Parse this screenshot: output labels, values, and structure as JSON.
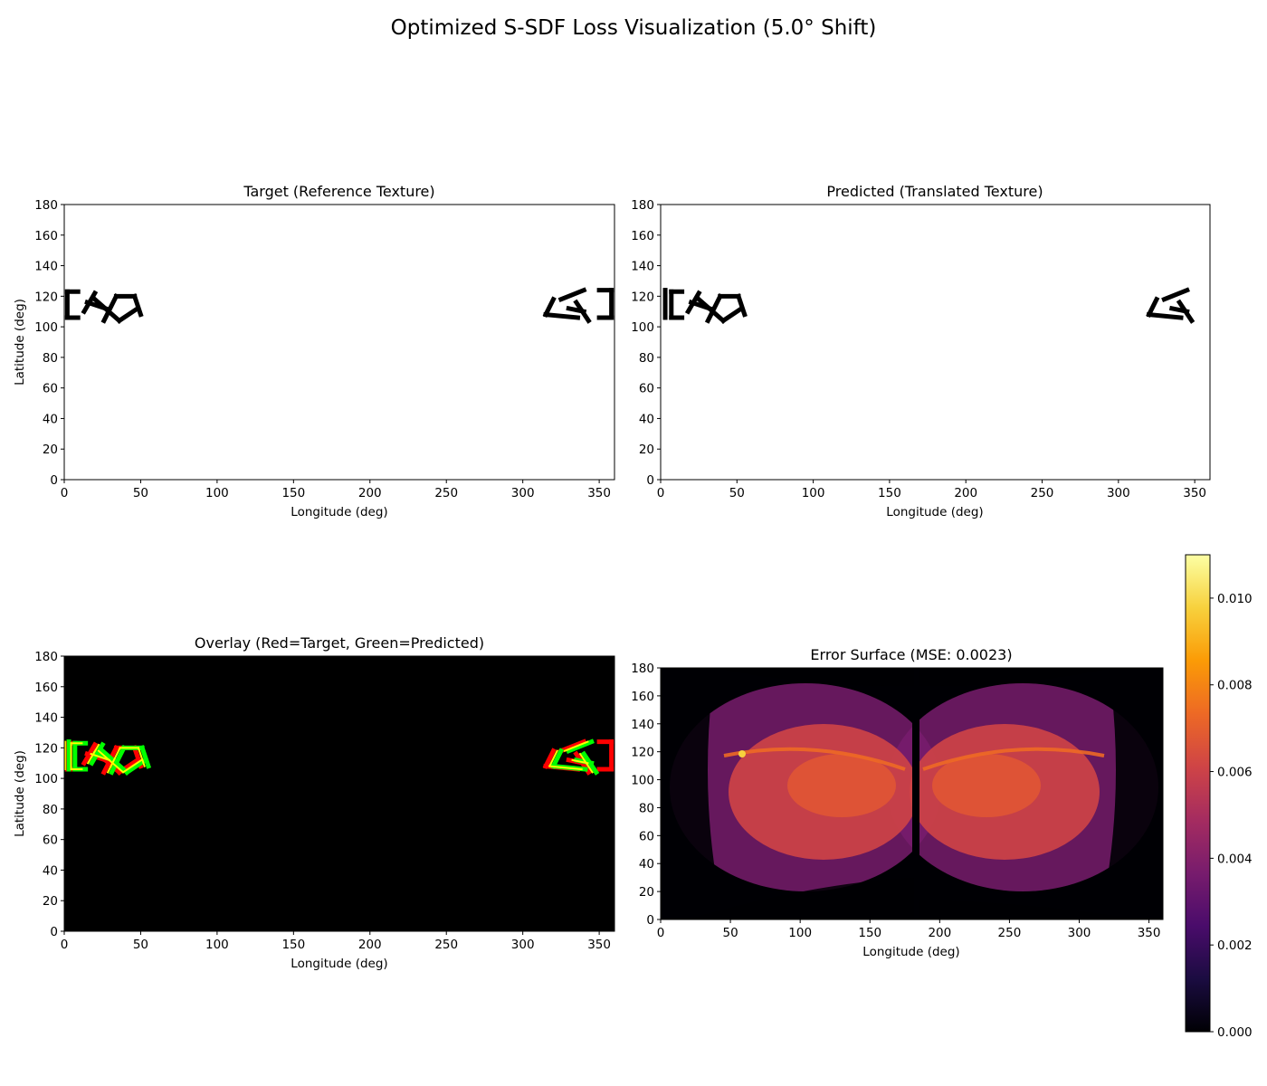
{
  "figure": {
    "title": "Optimized S-SDF Loss Visualization (5.0° Shift)"
  },
  "chart_data": [
    {
      "type": "heatmap",
      "panel": "target",
      "title": "Target (Reference Texture)",
      "xlabel": "Longitude (deg)",
      "ylabel": "Latitude (deg)",
      "xlim": [
        0,
        360
      ],
      "ylim": [
        0,
        180
      ],
      "xticks": [
        0,
        50,
        100,
        150,
        200,
        250,
        300,
        350
      ],
      "yticks": [
        0,
        20,
        40,
        60,
        80,
        100,
        120,
        140,
        160,
        180
      ],
      "ink_color": "#000000",
      "glyph_strokes": [
        [
          [
            2,
            123
          ],
          [
            2,
            106
          ]
        ],
        [
          [
            2,
            123
          ],
          [
            9,
            123
          ]
        ],
        [
          [
            2,
            106
          ],
          [
            9,
            106
          ]
        ],
        [
          [
            13,
            110
          ],
          [
            20,
            122
          ]
        ],
        [
          [
            15,
            116
          ],
          [
            27,
            112
          ]
        ],
        [
          [
            20,
            118
          ],
          [
            36,
            104
          ]
        ],
        [
          [
            26,
            104
          ],
          [
            34,
            120
          ]
        ],
        [
          [
            34,
            120
          ],
          [
            46,
            120
          ]
        ],
        [
          [
            36,
            104
          ],
          [
            48,
            112
          ]
        ],
        [
          [
            46,
            120
          ],
          [
            50,
            108
          ]
        ],
        [
          [
            315,
            108
          ],
          [
            320,
            118
          ]
        ],
        [
          [
            315,
            108
          ],
          [
            336,
            106
          ]
        ],
        [
          [
            325,
            118
          ],
          [
            340,
            124
          ]
        ],
        [
          [
            330,
            112
          ],
          [
            340,
            110
          ]
        ],
        [
          [
            335,
            116
          ],
          [
            343,
            104
          ]
        ],
        [
          [
            350,
            124
          ],
          [
            358,
            124
          ]
        ],
        [
          [
            358,
            124
          ],
          [
            358,
            106
          ]
        ],
        [
          [
            350,
            106
          ],
          [
            358,
            106
          ]
        ]
      ]
    },
    {
      "type": "heatmap",
      "panel": "predicted",
      "title": "Predicted (Translated Texture)",
      "xlabel": "Longitude (deg)",
      "xlim": [
        0,
        360
      ],
      "ylim": [
        0,
        180
      ],
      "xticks": [
        0,
        50,
        100,
        150,
        200,
        250,
        300,
        350
      ],
      "yticks": [
        0,
        20,
        40,
        60,
        80,
        100,
        120,
        140,
        160,
        180
      ],
      "ink_color": "#000000",
      "longitude_shift": 5
    },
    {
      "type": "heatmap",
      "panel": "overlay",
      "title": "Overlay (Red=Target, Green=Predicted)",
      "xlabel": "Longitude (deg)",
      "ylabel": "Latitude (deg)",
      "xlim": [
        0,
        360
      ],
      "ylim": [
        0,
        180
      ],
      "xticks": [
        0,
        50,
        100,
        150,
        200,
        250,
        300,
        350
      ],
      "yticks": [
        0,
        20,
        40,
        60,
        80,
        100,
        120,
        140,
        160,
        180
      ],
      "background": "#000000",
      "target_color": "#ff0000",
      "predicted_color": "#00ff00",
      "overlap_color": "#ffff00"
    },
    {
      "type": "heatmap",
      "panel": "error",
      "title": "Error Surface (MSE: 0.0023)",
      "xlabel": "Longitude (deg)",
      "xlim": [
        0,
        360
      ],
      "ylim": [
        0,
        180
      ],
      "xticks": [
        0,
        50,
        100,
        150,
        200,
        250,
        300,
        350
      ],
      "yticks": [
        0,
        20,
        40,
        60,
        80,
        100,
        120,
        140,
        160,
        180
      ],
      "colormap": "inferno",
      "colormap_stops": [
        "#000004",
        "#1b0c41",
        "#4a0c6b",
        "#781c6d",
        "#a52c60",
        "#cf4446",
        "#ed6925",
        "#fb9b06",
        "#f7d13d",
        "#fcffa4"
      ],
      "clim": [
        0,
        0.011
      ],
      "colorbar_ticks": [
        "0.000",
        "0.002",
        "0.004",
        "0.006",
        "0.008",
        "0.010"
      ],
      "colorbar_tick_values": [
        0,
        0.002,
        0.004,
        0.006,
        0.008,
        0.01
      ],
      "seam_longitude": 183,
      "mse": 0.0023
    }
  ]
}
